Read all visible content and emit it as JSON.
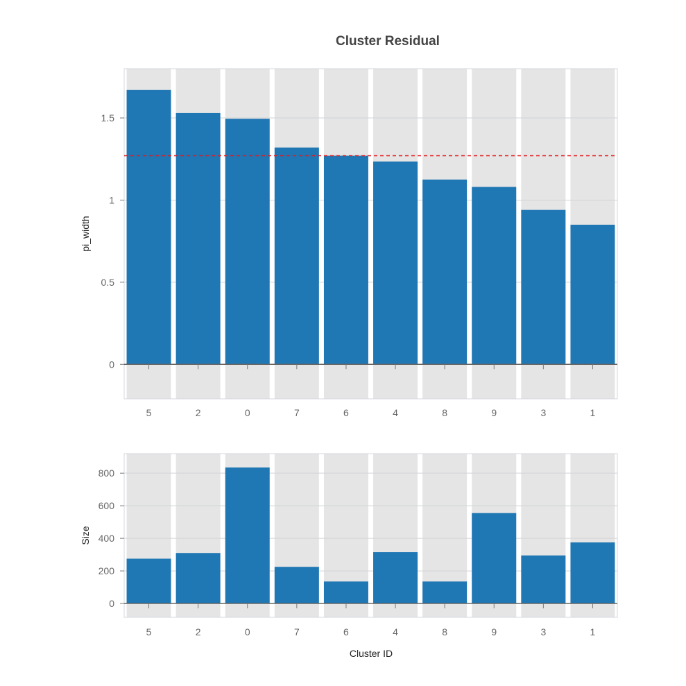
{
  "chart_data": {
    "title": "Cluster Residual",
    "type": "bar",
    "xlabel": "Cluster ID",
    "categories": [
      "5",
      "2",
      "0",
      "7",
      "6",
      "4",
      "8",
      "9",
      "3",
      "1"
    ],
    "colors": {
      "bar": "#1f77b4",
      "reference_line": "#e41a1c",
      "panel_bg": "#e5e5e5",
      "grid": "#d0d3d8"
    },
    "panels": [
      {
        "ylabel": "pi_width",
        "values": [
          1.67,
          1.53,
          1.495,
          1.32,
          1.27,
          1.235,
          1.125,
          1.08,
          0.94,
          0.85
        ],
        "ylim": [
          -0.21,
          1.8
        ],
        "yticks": [
          0,
          0.5,
          1,
          1.5
        ],
        "ytick_labels": [
          "0",
          "0.5",
          "1",
          "1.5"
        ],
        "reference_line": 1.27,
        "reference_style": "dashed"
      },
      {
        "ylabel": "Size",
        "values": [
          275,
          310,
          835,
          225,
          135,
          315,
          135,
          555,
          295,
          375
        ],
        "ylim": [
          -85,
          920
        ],
        "yticks": [
          0,
          200,
          400,
          600,
          800
        ],
        "ytick_labels": [
          "0",
          "200",
          "400",
          "600",
          "800"
        ]
      }
    ]
  }
}
